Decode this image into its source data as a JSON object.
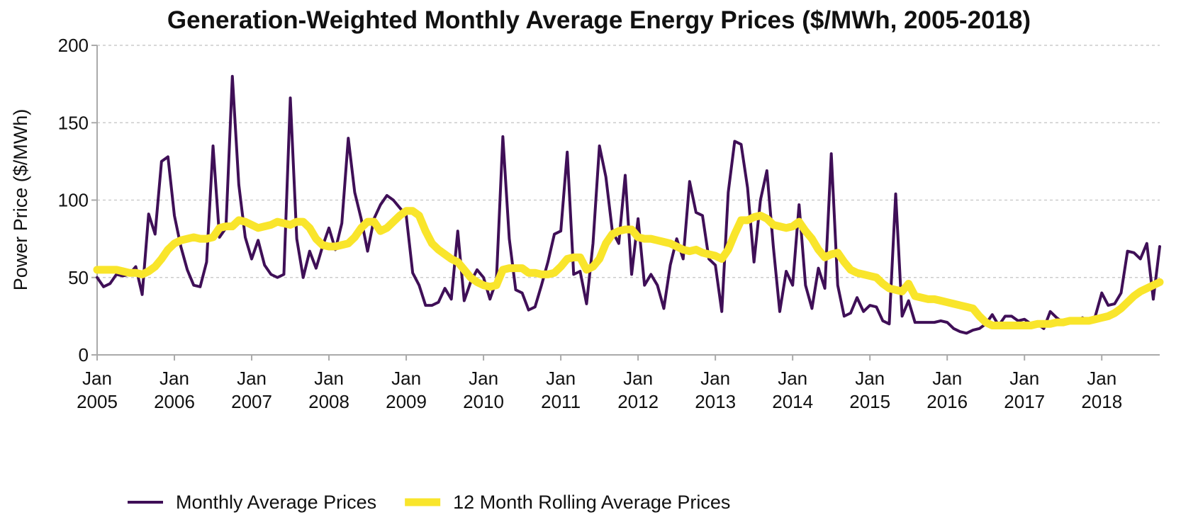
{
  "chart_data": {
    "type": "line",
    "title": "Generation-Weighted Monthly Average Energy Prices ($/MWh, 2005-2018)",
    "y_label": "Power Price ($/MWh)",
    "x": [
      "2005-01",
      "2005-02",
      "2005-03",
      "2005-04",
      "2005-05",
      "2005-06",
      "2005-07",
      "2005-08",
      "2005-09",
      "2005-10",
      "2005-11",
      "2005-12",
      "2006-01",
      "2006-02",
      "2006-03",
      "2006-04",
      "2006-05",
      "2006-06",
      "2006-07",
      "2006-08",
      "2006-09",
      "2006-10",
      "2006-11",
      "2006-12",
      "2007-01",
      "2007-02",
      "2007-03",
      "2007-04",
      "2007-05",
      "2007-06",
      "2007-07",
      "2007-08",
      "2007-09",
      "2007-10",
      "2007-11",
      "2007-12",
      "2008-01",
      "2008-02",
      "2008-03",
      "2008-04",
      "2008-05",
      "2008-06",
      "2008-07",
      "2008-08",
      "2008-09",
      "2008-10",
      "2008-11",
      "2008-12",
      "2009-01",
      "2009-02",
      "2009-03",
      "2009-04",
      "2009-05",
      "2009-06",
      "2009-07",
      "2009-08",
      "2009-09",
      "2009-10",
      "2009-11",
      "2009-12",
      "2010-01",
      "2010-02",
      "2010-03",
      "2010-04",
      "2010-05",
      "2010-06",
      "2010-07",
      "2010-08",
      "2010-09",
      "2010-10",
      "2010-11",
      "2010-12",
      "2011-01",
      "2011-02",
      "2011-03",
      "2011-04",
      "2011-05",
      "2011-06",
      "2011-07",
      "2011-08",
      "2011-09",
      "2011-10",
      "2011-11",
      "2011-12",
      "2012-01",
      "2012-02",
      "2012-03",
      "2012-04",
      "2012-05",
      "2012-06",
      "2012-07",
      "2012-08",
      "2012-09",
      "2012-10",
      "2012-11",
      "2012-12",
      "2013-01",
      "2013-02",
      "2013-03",
      "2013-04",
      "2013-05",
      "2013-06",
      "2013-07",
      "2013-08",
      "2013-09",
      "2013-10",
      "2013-11",
      "2013-12",
      "2014-01",
      "2014-02",
      "2014-03",
      "2014-04",
      "2014-05",
      "2014-06",
      "2014-07",
      "2014-08",
      "2014-09",
      "2014-10",
      "2014-11",
      "2014-12",
      "2015-01",
      "2015-02",
      "2015-03",
      "2015-04",
      "2015-05",
      "2015-06",
      "2015-07",
      "2015-08",
      "2015-09",
      "2015-10",
      "2015-11",
      "2015-12",
      "2016-01",
      "2016-02",
      "2016-03",
      "2016-04",
      "2016-05",
      "2016-06",
      "2016-07",
      "2016-08",
      "2016-09",
      "2016-10",
      "2016-11",
      "2016-12",
      "2017-01",
      "2017-02",
      "2017-03",
      "2017-04",
      "2017-05",
      "2017-06",
      "2017-07",
      "2017-08",
      "2017-09",
      "2017-10",
      "2017-11",
      "2017-12",
      "2018-01",
      "2018-02",
      "2018-03",
      "2018-04",
      "2018-05",
      "2018-06",
      "2018-07",
      "2018-08",
      "2018-09",
      "2018-10"
    ],
    "series": [
      {
        "name": "Monthly Average Prices",
        "color": "#3f0f57",
        "width": 4,
        "values": [
          50,
          44,
          46,
          52,
          51,
          52,
          57,
          39,
          91,
          78,
          125,
          128,
          90,
          70,
          55,
          45,
          44,
          60,
          135,
          76,
          82,
          180,
          110,
          76,
          62,
          74,
          58,
          52,
          50,
          52,
          166,
          75,
          50,
          67,
          56,
          70,
          82,
          68,
          85,
          140,
          105,
          88,
          67,
          88,
          97,
          103,
          100,
          95,
          90,
          53,
          45,
          32,
          32,
          34,
          43,
          36,
          80,
          35,
          47,
          55,
          50,
          36,
          48,
          141,
          75,
          42,
          40,
          29,
          31,
          45,
          60,
          78,
          80,
          131,
          52,
          54,
          33,
          72,
          135,
          115,
          80,
          72,
          116,
          52,
          88,
          45,
          52,
          45,
          30,
          58,
          75,
          62,
          112,
          92,
          90,
          62,
          58,
          28,
          105,
          138,
          136,
          108,
          60,
          100,
          119,
          70,
          28,
          54,
          45,
          97,
          45,
          30,
          56,
          43,
          130,
          45,
          25,
          27,
          37,
          28,
          32,
          31,
          22,
          20,
          104,
          25,
          35,
          21,
          21,
          21,
          21,
          22,
          21,
          17,
          15,
          14,
          16,
          17,
          20,
          26,
          19,
          25,
          25,
          22,
          23,
          20,
          20,
          17,
          28,
          24,
          21,
          23,
          21,
          24,
          22,
          25,
          40,
          32,
          33,
          40,
          67,
          66,
          62,
          72,
          36,
          70
        ]
      },
      {
        "name": "12 Month Rolling Average Prices",
        "color": "#f9e52b",
        "width": 11,
        "values": [
          55,
          55,
          55,
          55,
          54,
          53,
          53,
          52,
          54,
          57,
          62,
          68,
          72,
          74,
          75,
          76,
          75,
          75,
          76,
          82,
          83,
          83,
          87,
          86,
          84,
          82,
          83,
          84,
          86,
          85,
          84,
          86,
          86,
          82,
          75,
          71,
          70,
          70,
          71,
          72,
          76,
          82,
          86,
          86,
          80,
          82,
          86,
          90,
          93,
          93,
          90,
          80,
          72,
          68,
          65,
          62,
          60,
          55,
          50,
          47,
          45,
          44,
          45,
          55,
          56,
          56,
          56,
          53,
          53,
          52,
          52,
          53,
          57,
          62,
          63,
          63,
          55,
          57,
          62,
          72,
          78,
          80,
          81,
          81,
          76,
          75,
          75,
          74,
          73,
          72,
          70,
          68,
          67,
          68,
          66,
          65,
          64,
          62,
          68,
          78,
          87,
          87,
          89,
          90,
          88,
          84,
          83,
          82,
          83,
          86,
          80,
          75,
          68,
          63,
          65,
          66,
          60,
          55,
          53,
          52,
          51,
          50,
          46,
          43,
          42,
          41,
          46,
          38,
          37,
          36,
          36,
          35,
          34,
          33,
          32,
          31,
          30,
          25,
          21,
          19,
          19,
          19,
          19,
          19,
          19,
          19,
          20,
          20,
          20,
          21,
          21,
          22,
          22,
          22,
          22,
          23,
          24,
          25,
          27,
          30,
          34,
          38,
          41,
          43,
          45,
          47
        ]
      }
    ],
    "xticks": [
      {
        "value": "2005-01",
        "label": "Jan 2005"
      },
      {
        "value": "2006-01",
        "label": "Jan 2006"
      },
      {
        "value": "2007-01",
        "label": "Jan 2007"
      },
      {
        "value": "2008-01",
        "label": "Jan 2008"
      },
      {
        "value": "2009-01",
        "label": "Jan 2009"
      },
      {
        "value": "2010-01",
        "label": "Jan 2010"
      },
      {
        "value": "2011-01",
        "label": "Jan 2011"
      },
      {
        "value": "2012-01",
        "label": "Jan 2012"
      },
      {
        "value": "2013-01",
        "label": "Jan 2013"
      },
      {
        "value": "2014-01",
        "label": "Jan 2014"
      },
      {
        "value": "2015-01",
        "label": "Jan 2015"
      },
      {
        "value": "2016-01",
        "label": "Jan 2016"
      },
      {
        "value": "2017-01",
        "label": "Jan 2017"
      },
      {
        "value": "2018-01",
        "label": "Jan 2018"
      }
    ],
    "ylim": [
      0,
      200
    ],
    "yticks": [
      0,
      50,
      100,
      150,
      200
    ],
    "grid": true,
    "legend": "bottom"
  }
}
